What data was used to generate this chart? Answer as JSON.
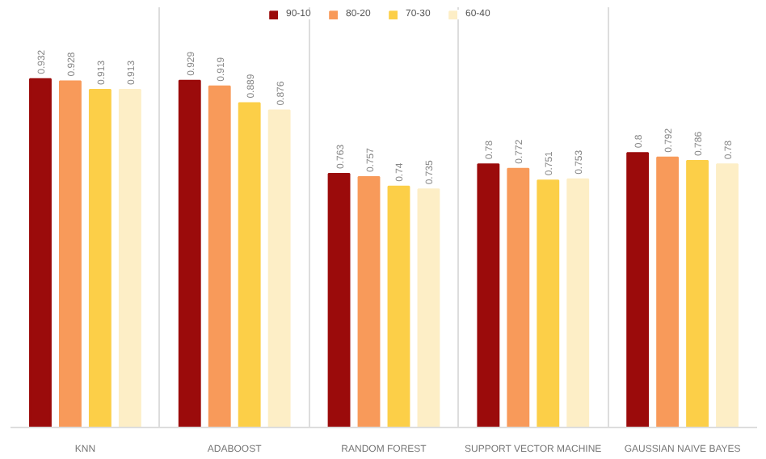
{
  "chart_data": {
    "type": "bar",
    "categories": [
      "KNN",
      "ADABOOST",
      "RANDOM FOREST",
      "SUPPORT VECTOR MACHINE",
      "GAUSSIAN NAIVE BAYES"
    ],
    "series": [
      {
        "name": "90-10",
        "color": "#9b0b0b",
        "values": [
          0.932,
          0.929,
          0.763,
          0.78,
          0.8
        ]
      },
      {
        "name": "80-20",
        "color": "#f89a5a",
        "values": [
          0.928,
          0.919,
          0.757,
          0.772,
          0.792
        ]
      },
      {
        "name": "70-30",
        "color": "#fccf48",
        "values": [
          0.913,
          0.889,
          0.74,
          0.751,
          0.786
        ]
      },
      {
        "name": "60-40",
        "color": "#fdeec6",
        "values": [
          0.913,
          0.876,
          0.735,
          0.753,
          0.78
        ]
      }
    ],
    "ylim": [
      0.31,
      1.06
    ],
    "tick_labels": "x",
    "grid": "x",
    "legend": "top",
    "data_labels": true
  }
}
